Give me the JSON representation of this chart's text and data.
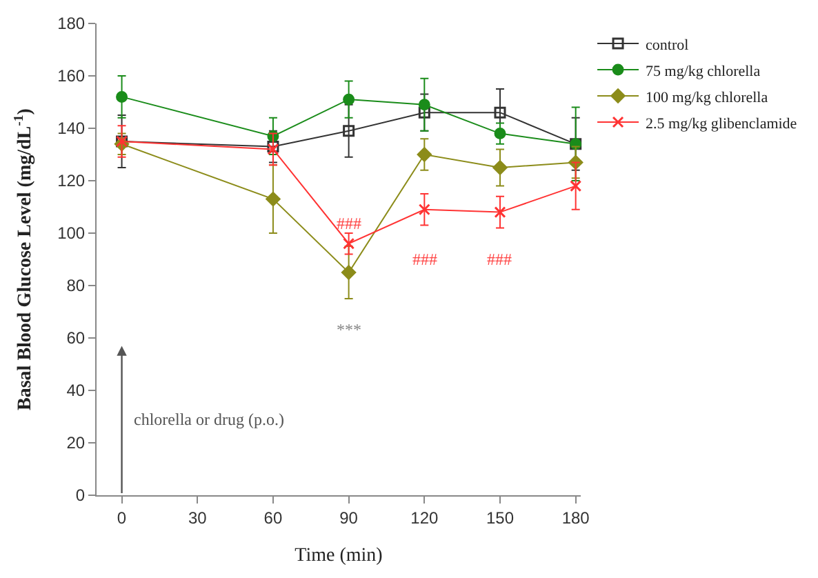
{
  "chart_data": {
    "type": "line",
    "xlabel": "Time (min)",
    "ylabel": "Basal Blood Glucose Level (mg/dL$^{-1}$)",
    "x": [
      0,
      60,
      90,
      120,
      150,
      180
    ],
    "xlim": [
      -10,
      182
    ],
    "xticks": [
      0,
      30,
      60,
      90,
      120,
      150,
      180
    ],
    "ylim": [
      0,
      180
    ],
    "yticks": [
      0,
      20,
      40,
      60,
      80,
      100,
      120,
      140,
      160,
      180
    ],
    "legend": "top right",
    "series": [
      {
        "name": "control",
        "color": "#333333",
        "marker": "square",
        "values": [
          135,
          133,
          139,
          146,
          146,
          134
        ],
        "errors": [
          10,
          6,
          10,
          7,
          9,
          10
        ]
      },
      {
        "name": "75 mg/kg chlorella",
        "color": "#1a8c1a",
        "marker": "circle",
        "values": [
          152,
          137,
          151,
          149,
          138,
          134
        ],
        "errors": [
          8,
          7,
          7,
          10,
          4,
          14
        ]
      },
      {
        "name": "100 mg/kg chlorella",
        "color": "#8c8c1a",
        "marker": "diamond",
        "values": [
          134,
          113,
          85,
          130,
          125,
          127
        ],
        "errors": [
          4,
          13,
          10,
          6,
          7,
          6
        ]
      },
      {
        "name": "2.5 mg/kg glibenclamide",
        "color": "#ff3333",
        "marker": "cross",
        "values": [
          135,
          132,
          96,
          109,
          108,
          118
        ],
        "errors": [
          6,
          6,
          4,
          6,
          6,
          9
        ]
      }
    ],
    "annotations": [
      "###",
      "###",
      "###",
      "***",
      "chlorella or drug (p.o.)"
    ]
  }
}
